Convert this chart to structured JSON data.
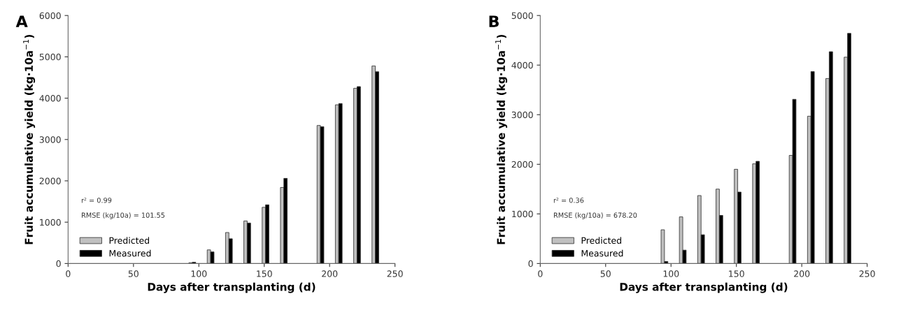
{
  "chart_data": [
    {
      "type": "bar",
      "title": "A",
      "xlabel": "Days after transplanting (d)",
      "ylabel": "Fruit accumulative yield (kg·10a$^{−1}$)",
      "x": [
        95,
        109,
        123,
        137,
        151,
        165,
        193,
        207,
        221,
        235
      ],
      "series": [
        {
          "name": "Predicted",
          "color": "#c0c0c0",
          "values": [
            20,
            330,
            750,
            1030,
            1360,
            1840,
            3340,
            3840,
            4240,
            4780
          ]
        },
        {
          "name": "Measured",
          "color": "#000000",
          "values": [
            30,
            280,
            600,
            980,
            1420,
            2060,
            3310,
            3870,
            4280,
            4640
          ]
        }
      ],
      "xlim": [
        0,
        250
      ],
      "xticks": [
        0,
        50,
        100,
        150,
        200,
        250
      ],
      "ylim": [
        0,
        6000
      ],
      "yticks": [
        0,
        1000,
        2000,
        3000,
        4000,
        5000,
        6000
      ],
      "annotations": [
        "r² = 0.99",
        "RMSE (kg/10a) = 101.55"
      ],
      "legend": "bottom left",
      "grid": false
    },
    {
      "type": "bar",
      "title": "B",
      "xlabel": "Days after transplanting (d)",
      "ylabel": "Fruit accumulative yield (kg·10a$^{−1}$)",
      "x": [
        95,
        109,
        123,
        137,
        151,
        165,
        193,
        207,
        221,
        235
      ],
      "series": [
        {
          "name": "Predicted",
          "color": "#c0c0c0",
          "values": [
            680,
            940,
            1370,
            1500,
            1900,
            2010,
            2180,
            2970,
            3730,
            4160
          ]
        },
        {
          "name": "Measured",
          "color": "#000000",
          "values": [
            40,
            270,
            580,
            970,
            1440,
            2060,
            3310,
            3870,
            4270,
            4640
          ]
        }
      ],
      "xlim": [
        0,
        250
      ],
      "xticks": [
        0,
        50,
        100,
        150,
        200,
        250
      ],
      "ylim": [
        0,
        5000
      ],
      "yticks": [
        0,
        1000,
        2000,
        3000,
        4000,
        5000
      ],
      "annotations": [
        "r² = 0.36",
        "RMSE (kg/10a) = 678.20"
      ],
      "legend": "bottom left",
      "grid": false
    }
  ]
}
